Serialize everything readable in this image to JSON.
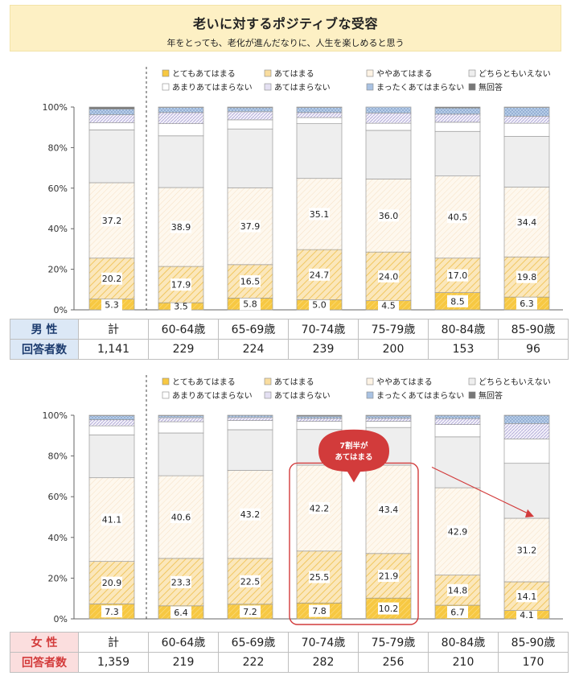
{
  "header": {
    "title": "老いに対するポジティブな受容",
    "subtitle": "年をとっても、老化が進んだなりに、人生を楽しめると思う"
  },
  "colors": {
    "very_agree": "#f7c842",
    "agree": "#f9dd9f",
    "somewhat_agree": "#fdf3e4",
    "neutral": "#eeeeee",
    "not_really": "#ffffff",
    "disagree": "#e4e0f2",
    "strongly_disagree": "#a9c2e2",
    "no_answer": "#777777",
    "annotation": "#d23b3b",
    "male_label_bg": "#dce8f6",
    "female_label_bg": "#fbdede"
  },
  "legend": [
    "とてもあてはまる",
    "あてはまる",
    "ややあてはまる",
    "どちらともいえない",
    "あまりあてはまらない",
    "あてはまらない",
    "まったくあてはまらない",
    "無回答"
  ],
  "y_ticks": [
    "0%",
    "20%",
    "40%",
    "60%",
    "80%",
    "100%"
  ],
  "annotation": {
    "line1": "7割半が",
    "line2": "あてはまる"
  },
  "chart_data": [
    {
      "type": "bar",
      "stacked": true,
      "group_label": "男 性",
      "count_label": "回答者数",
      "categories": [
        "計",
        "60-64歳",
        "65-69歳",
        "70-74歳",
        "75-79歳",
        "80-84歳",
        "85-90歳"
      ],
      "counts": [
        "1,141",
        "229",
        "224",
        "239",
        "200",
        "153",
        "96"
      ],
      "ylim": [
        0,
        100
      ],
      "series": [
        {
          "name": "とてもあてはまる",
          "values": [
            5.3,
            3.5,
            5.8,
            5.0,
            4.5,
            8.5,
            6.3
          ]
        },
        {
          "name": "あてはまる",
          "values": [
            20.2,
            17.9,
            16.5,
            24.7,
            24.0,
            17.0,
            19.8
          ]
        },
        {
          "name": "ややあてはまる",
          "values": [
            37.2,
            38.9,
            37.9,
            35.1,
            36.0,
            40.5,
            34.4
          ]
        },
        {
          "name": "どちらともいえない",
          "values": [
            26.0,
            25.5,
            29.0,
            27.0,
            24.0,
            22.0,
            25.0
          ]
        },
        {
          "name": "あまりあてはまらない",
          "values": [
            3.5,
            6.0,
            4.5,
            3.0,
            3.5,
            4.5,
            6.5
          ]
        },
        {
          "name": "あてはまらない",
          "values": [
            4.0,
            5.5,
            4.0,
            2.5,
            5.0,
            4.0,
            3.5
          ]
        },
        {
          "name": "まったくあてはまらない",
          "values": [
            2.8,
            2.5,
            2.0,
            2.5,
            3.0,
            3.0,
            4.3
          ]
        },
        {
          "name": "無回答",
          "values": [
            1.0,
            0.2,
            0.3,
            0.2,
            0.0,
            0.5,
            0.2
          ]
        }
      ]
    },
    {
      "type": "bar",
      "stacked": true,
      "group_label": "女 性",
      "count_label": "回答者数",
      "categories": [
        "計",
        "60-64歳",
        "65-69歳",
        "70-74歳",
        "75-79歳",
        "80-84歳",
        "85-90歳"
      ],
      "counts": [
        "1,359",
        "219",
        "222",
        "282",
        "256",
        "210",
        "170"
      ],
      "ylim": [
        0,
        100
      ],
      "series": [
        {
          "name": "とてもあてはまる",
          "values": [
            7.3,
            6.4,
            7.2,
            7.8,
            10.2,
            6.7,
            4.1
          ]
        },
        {
          "name": "あてはまる",
          "values": [
            20.9,
            23.3,
            22.5,
            25.5,
            21.9,
            14.8,
            14.1
          ]
        },
        {
          "name": "ややあてはまる",
          "values": [
            41.1,
            40.6,
            43.2,
            42.2,
            43.4,
            42.9,
            31.2
          ]
        },
        {
          "name": "どちらともいえない",
          "values": [
            21.0,
            21.0,
            20.0,
            17.5,
            18.5,
            25.0,
            27.0
          ]
        },
        {
          "name": "あまりあてはまらない",
          "values": [
            4.5,
            5.5,
            4.5,
            4.0,
            3.0,
            6.0,
            12.0
          ]
        },
        {
          "name": "あてはまらない",
          "values": [
            3.0,
            2.0,
            1.5,
            1.5,
            1.5,
            3.0,
            7.5
          ]
        },
        {
          "name": "まったくあてはまらない",
          "values": [
            2.0,
            1.0,
            1.0,
            1.0,
            1.2,
            1.5,
            4.0
          ]
        },
        {
          "name": "無回答",
          "values": [
            0.2,
            0.2,
            0.1,
            0.5,
            0.3,
            0.1,
            0.1
          ]
        }
      ]
    }
  ]
}
